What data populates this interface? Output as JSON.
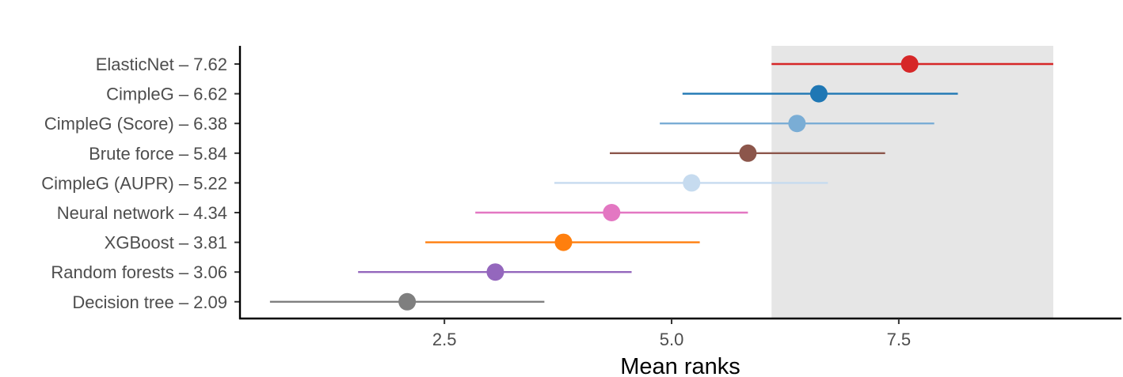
{
  "chart_data": {
    "type": "dot-interval",
    "xlabel": "Mean ranks",
    "ylabel": "",
    "xlim": [
      0.25,
      9.95
    ],
    "x_ticks": [
      2.5,
      5.0,
      7.5
    ],
    "x_tick_labels": [
      "2.5",
      "5.0",
      "7.5"
    ],
    "grid": false,
    "highlight_band": {
      "x_from": 6.1,
      "x_to": 9.2,
      "color": "#e6e6e6"
    },
    "series": [
      {
        "label": "ElasticNet – 7.62",
        "name": "ElasticNet",
        "mean": 7.62,
        "lower": 6.1,
        "upper": 9.2,
        "color": "#d62728"
      },
      {
        "label": "CimpleG – 6.62",
        "name": "CimpleG",
        "mean": 6.62,
        "lower": 5.12,
        "upper": 8.15,
        "color": "#1f77b4"
      },
      {
        "label": "CimpleG (Score) – 6.38",
        "name": "CimpleG (Score)",
        "mean": 6.38,
        "lower": 4.87,
        "upper": 7.89,
        "color": "#7aadd5"
      },
      {
        "label": "Brute force – 5.84",
        "name": "Brute force",
        "mean": 5.84,
        "lower": 4.32,
        "upper": 7.35,
        "color": "#8c564b"
      },
      {
        "label": "CimpleG (AUPR) – 5.22",
        "name": "CimpleG (AUPR)",
        "mean": 5.22,
        "lower": 3.71,
        "upper": 6.72,
        "color": "#c6dbef"
      },
      {
        "label": "Neural network – 4.34",
        "name": "Neural network",
        "mean": 4.34,
        "lower": 2.84,
        "upper": 5.84,
        "color": "#e377c2"
      },
      {
        "label": "XGBoost – 3.81",
        "name": "XGBoost",
        "mean": 3.81,
        "lower": 2.29,
        "upper": 5.31,
        "color": "#ff7f0e"
      },
      {
        "label": "Random forests – 3.06",
        "name": "Random forests",
        "mean": 3.06,
        "lower": 1.55,
        "upper": 4.56,
        "color": "#9467bd"
      },
      {
        "label": "Decision tree – 2.09",
        "name": "Decision tree",
        "mean": 2.09,
        "lower": 0.58,
        "upper": 3.6,
        "color": "#7f7f7f"
      }
    ]
  }
}
